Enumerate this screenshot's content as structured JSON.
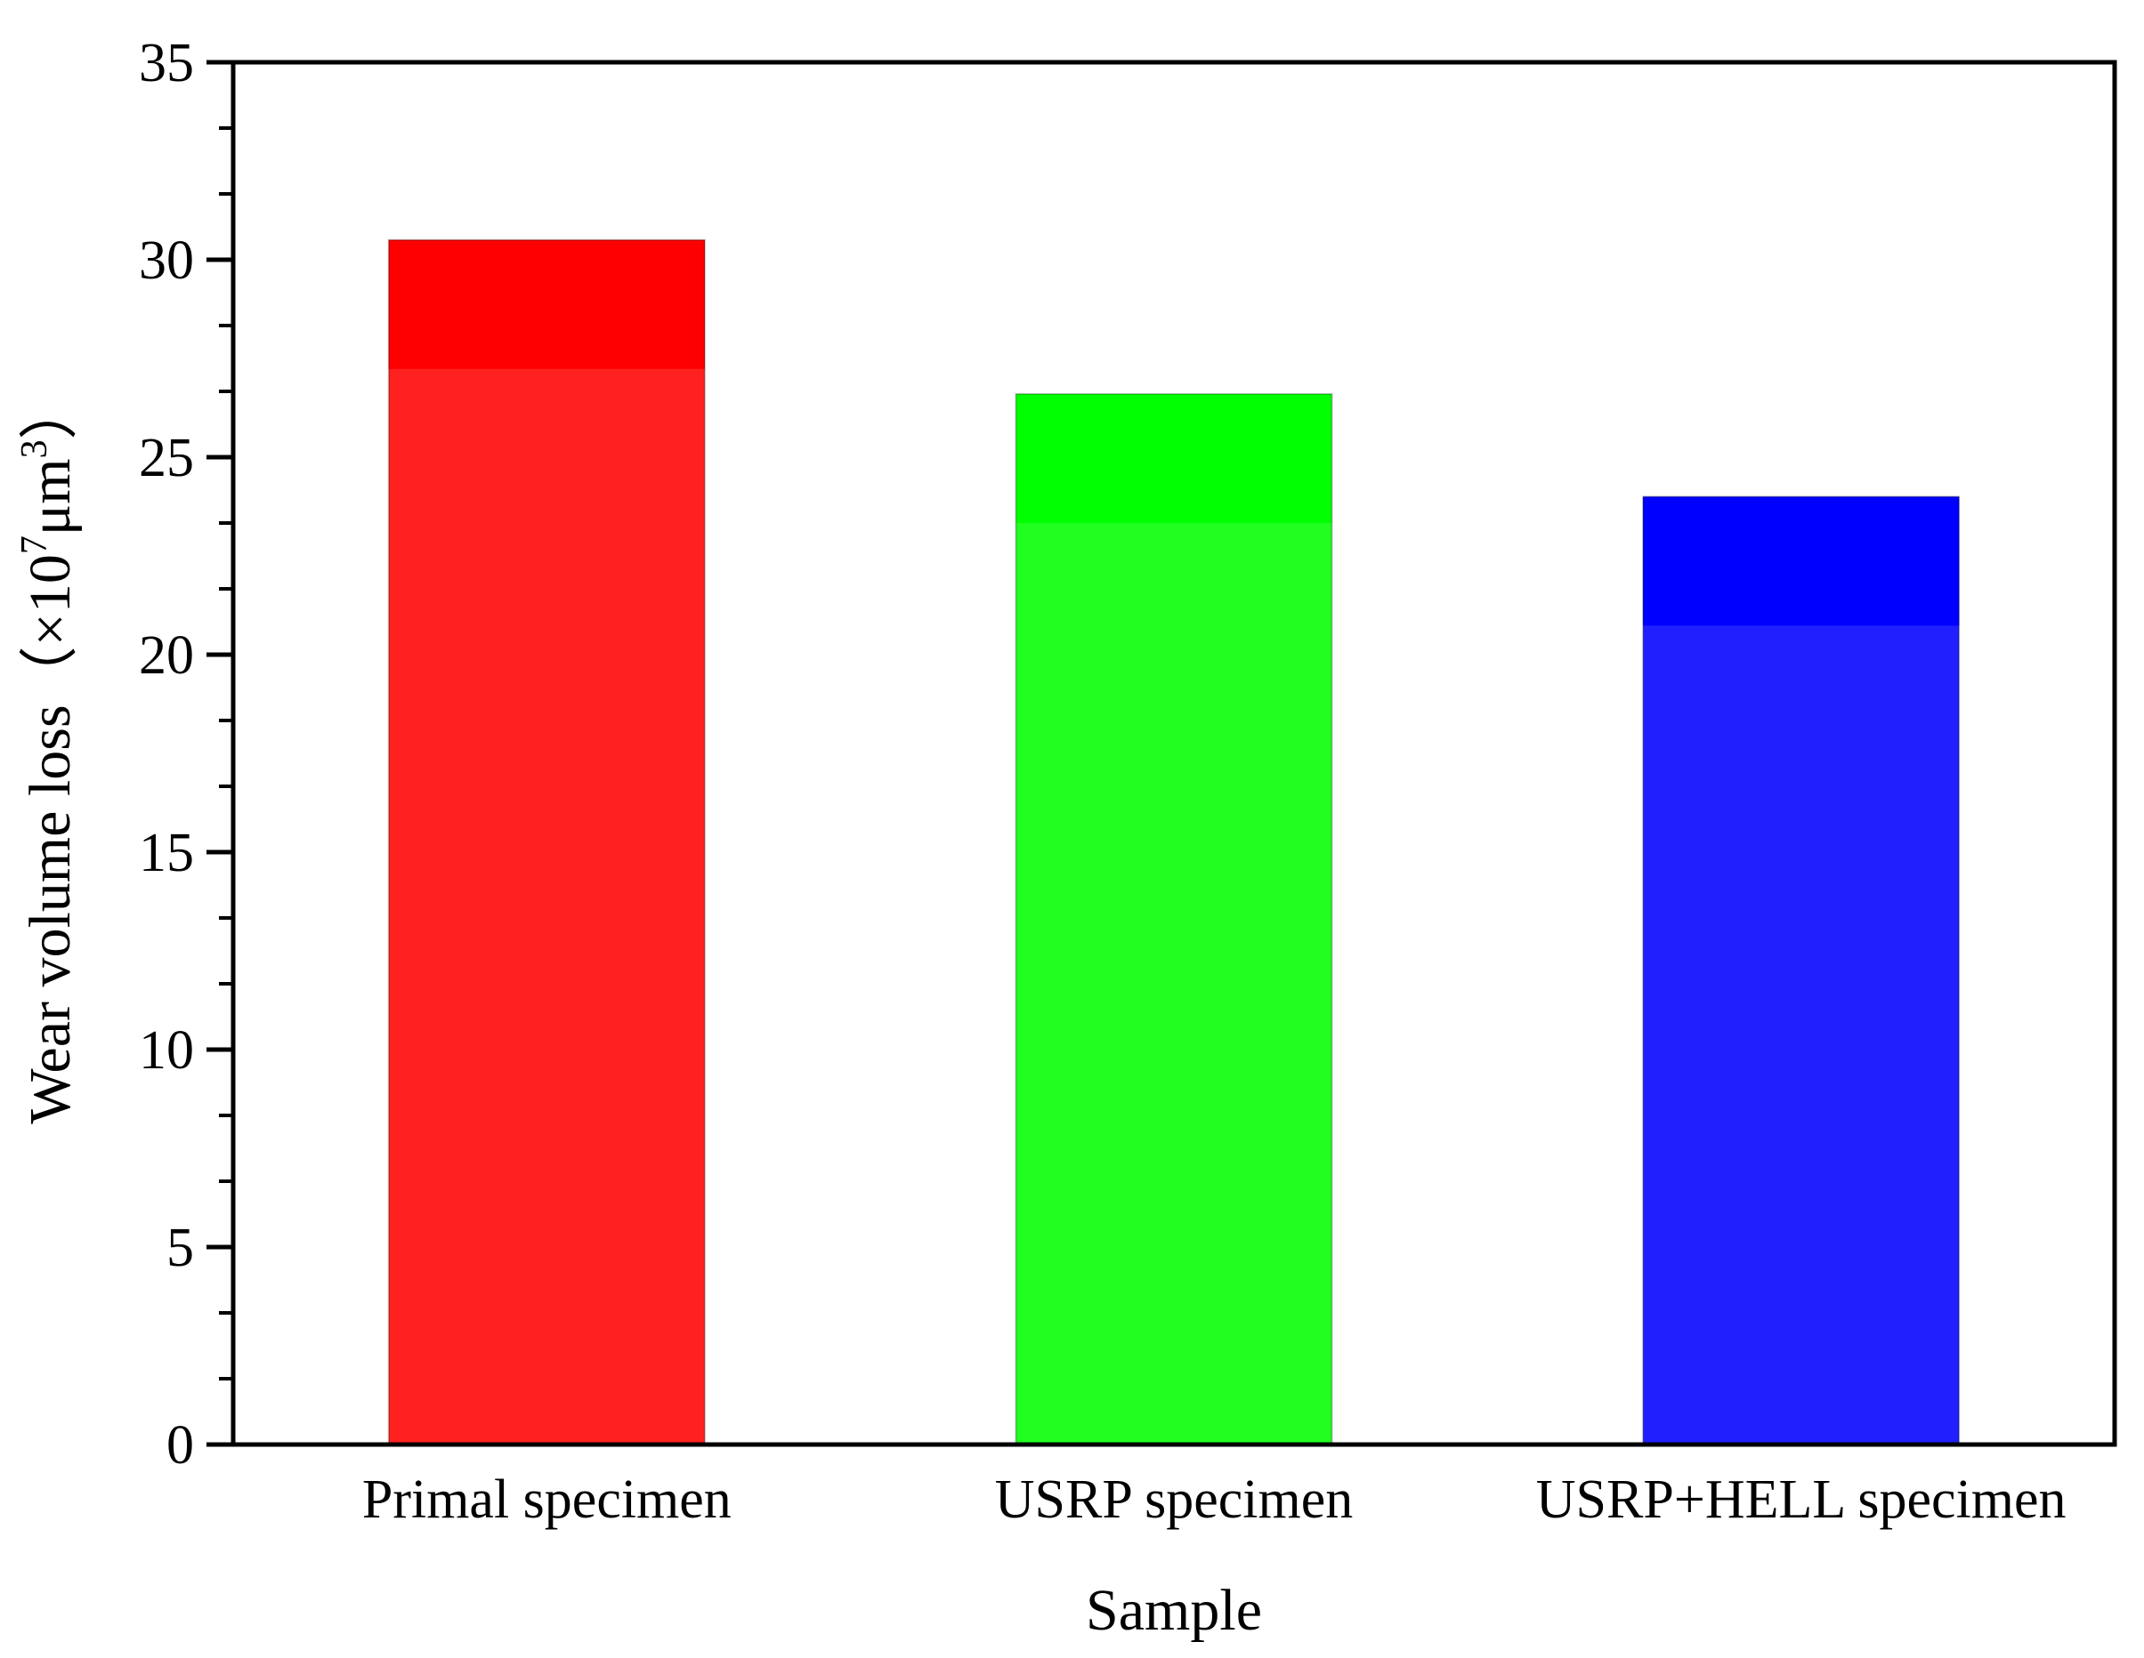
{
  "chart_data": {
    "type": "bar",
    "title": "",
    "xlabel": "Sample",
    "ylabel": {
      "text": "Wear volume loss",
      "unit_open": "（×10",
      "unit_exp1": "7",
      "unit_mid": "μm",
      "unit_exp2": "3",
      "unit_close": "）"
    },
    "categories": [
      "Primal specimen",
      "USRP specimen",
      "USRP+HELL specimen"
    ],
    "values": [
      30.5,
      26.6,
      24.0
    ],
    "colors": [
      "#ff2020",
      "#20ff20",
      "#2020ff"
    ],
    "top_colors": [
      "#ff0000",
      "#00ff00",
      "#0000ff"
    ],
    "ylim": [
      0,
      35
    ],
    "yticks": [
      0,
      5,
      10,
      15,
      20,
      25,
      30,
      35
    ],
    "grid": false,
    "legend": "none"
  }
}
